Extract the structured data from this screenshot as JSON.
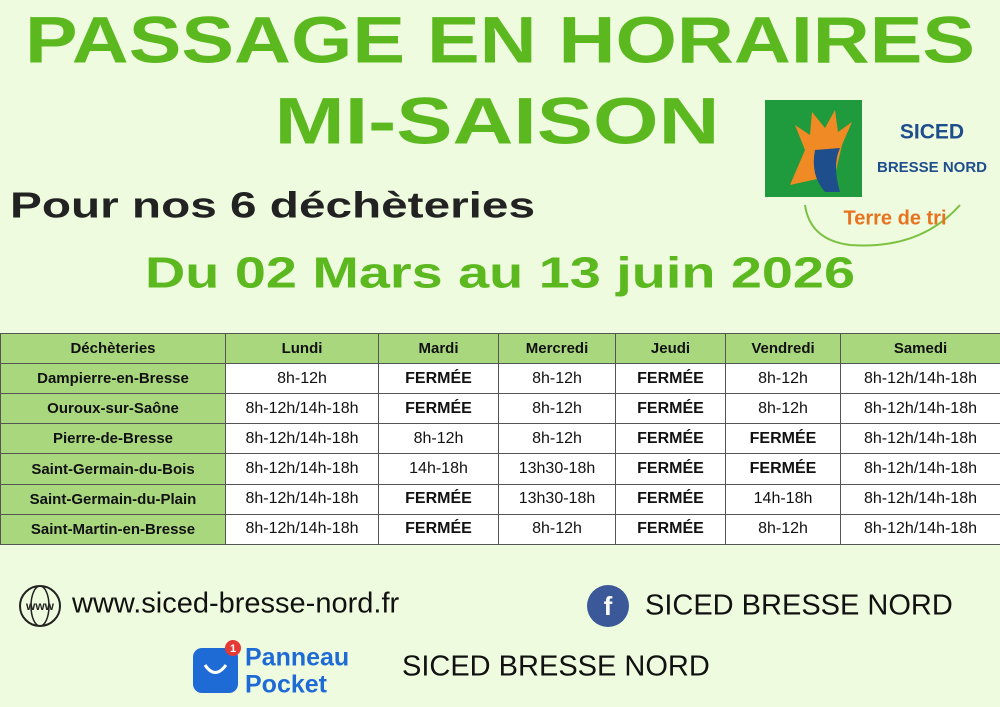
{
  "header": {
    "title_lines": [
      "PASSAGE EN HORAIRES",
      "MI-SAISON"
    ],
    "subtitle": "Pour nos 6 déchèteries",
    "period": "Du 02 Mars au 13 juin 2026"
  },
  "logo": {
    "name": "SICED",
    "region": "BRESSE NORD",
    "tagline": "Terre de tri"
  },
  "table": {
    "columns": [
      "Déchèteries",
      "Lundi",
      "Mardi",
      "Mercredi",
      "Jeudi",
      "Vendredi",
      "Samedi"
    ],
    "rows": [
      [
        "Dampierre-en-Bresse",
        "8h-12h",
        "FERMÉE",
        "8h-12h",
        "FERMÉE",
        "8h-12h",
        "8h-12h/14h-18h"
      ],
      [
        "Ouroux-sur-Saône",
        "8h-12h/14h-18h",
        "FERMÉE",
        "8h-12h",
        "FERMÉE",
        "8h-12h",
        "8h-12h/14h-18h"
      ],
      [
        "Pierre-de-Bresse",
        "8h-12h/14h-18h",
        "8h-12h",
        "8h-12h",
        "FERMÉE",
        "FERMÉE",
        "8h-12h/14h-18h"
      ],
      [
        "Saint-Germain-du-Bois",
        "8h-12h/14h-18h",
        "14h-18h",
        "13h30-18h",
        "FERMÉE",
        "FERMÉE",
        "8h-12h/14h-18h"
      ],
      [
        "Saint-Germain-du-Plain",
        "8h-12h/14h-18h",
        "FERMÉE",
        "13h30-18h",
        "FERMÉE",
        "14h-18h",
        "8h-12h/14h-18h"
      ],
      [
        "Saint-Martin-en-Bresse",
        "8h-12h/14h-18h",
        "FERMÉE",
        "8h-12h",
        "FERMÉE",
        "8h-12h",
        "8h-12h/14h-18h"
      ]
    ]
  },
  "footer": {
    "web_icon": "www",
    "website": "www.siced-bresse-nord.fr",
    "facebook_icon": "f",
    "facebook": "SICED BRESSE NORD",
    "app_badge": "1",
    "app_name_lines": [
      "Panneau",
      "Pocket"
    ],
    "app_account": "SICED BRESSE NORD"
  }
}
